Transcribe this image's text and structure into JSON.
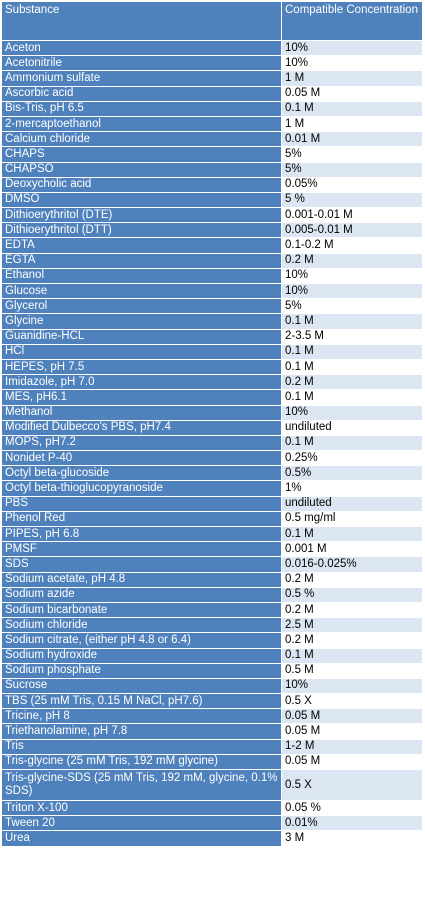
{
  "header": {
    "substance": "Substance",
    "concentration": "Compatible Concentration"
  },
  "rows": [
    {
      "substance": "Aceton",
      "concentration": "10%"
    },
    {
      "substance": "Acetonitrile",
      "concentration": "10%"
    },
    {
      "substance": "Ammonium sulfate",
      "concentration": "1 M"
    },
    {
      "substance": "Ascorbic acid",
      "concentration": "0.05 M"
    },
    {
      "substance": "Bis-Tris, pH 6.5",
      "concentration": "0.1 M"
    },
    {
      "substance": "2-mercaptoethanol",
      "concentration": "1 M"
    },
    {
      "substance": "Calcium chloride",
      "concentration": "0.01 M"
    },
    {
      "substance": "CHAPS",
      "concentration": "5%"
    },
    {
      "substance": "CHAPSO",
      "concentration": "5%"
    },
    {
      "substance": "Deoxycholic acid",
      "concentration": "0.05%"
    },
    {
      "substance": "DMSO",
      "concentration": "5 %"
    },
    {
      "substance": "Dithioerythritol (DTE)",
      "concentration": "0.001-0.01 M"
    },
    {
      "substance": "Dithioerythritol (DTT)",
      "concentration": "0.005-0.01 M"
    },
    {
      "substance": "EDTA",
      "concentration": "0.1-0.2 M"
    },
    {
      "substance": "EGTA",
      "concentration": "0.2 M"
    },
    {
      "substance": "Ethanol",
      "concentration": "10%"
    },
    {
      "substance": "Glucose",
      "concentration": "10%"
    },
    {
      "substance": "Glycerol",
      "concentration": "5%"
    },
    {
      "substance": "Glycine",
      "concentration": "0.1 M"
    },
    {
      "substance": "Guanidine-HCL",
      "concentration": "2-3.5 M"
    },
    {
      "substance": "HCl",
      "concentration": "0.1 M"
    },
    {
      "substance": "HEPES, pH 7.5",
      "concentration": "0.1 M"
    },
    {
      "substance": "Imidazole, pH 7.0",
      "concentration": "0.2 M"
    },
    {
      "substance": "MES, pH6.1",
      "concentration": "0.1 M"
    },
    {
      "substance": "Methanol",
      "concentration": "10%"
    },
    {
      "substance": "Modified Dulbecco's PBS, pH7.4",
      "concentration": "undiluted"
    },
    {
      "substance": "MOPS, pH7.2",
      "concentration": "0.1 M"
    },
    {
      "substance": "Nonidet P-40",
      "concentration": "0.25%"
    },
    {
      "substance": "Octyl beta-glucoside",
      "concentration": "0.5%"
    },
    {
      "substance": "Octyl beta-thioglucopyranoside",
      "concentration": "1%"
    },
    {
      "substance": "PBS",
      "concentration": "undiluted"
    },
    {
      "substance": "Phenol Red",
      "concentration": "0.5 mg/ml"
    },
    {
      "substance": "PIPES, pH 6.8",
      "concentration": "0.1 M"
    },
    {
      "substance": "PMSF",
      "concentration": "0.001 M"
    },
    {
      "substance": "SDS",
      "concentration": "0.016-0.025%"
    },
    {
      "substance": "Sodium acetate, pH 4.8",
      "concentration": "0.2 M"
    },
    {
      "substance": "Sodium azide",
      "concentration": "0.5 %"
    },
    {
      "substance": "Sodium bicarbonate",
      "concentration": "0.2 M"
    },
    {
      "substance": "Sodium chloride",
      "concentration": "2.5 M"
    },
    {
      "substance": "Sodium citrate, (either pH 4.8 or 6.4)",
      "concentration": "0.2 M"
    },
    {
      "substance": "Sodium hydroxide",
      "concentration": "0.1 M"
    },
    {
      "substance": "Sodium phosphate",
      "concentration": "0.5 M"
    },
    {
      "substance": "Sucrose",
      "concentration": "10%"
    },
    {
      "substance": "TBS (25 mM Tris, 0.15 M NaCl, pH7.6)",
      "concentration": "0.5 X"
    },
    {
      "substance": "Tricine, pH 8",
      "concentration": "0.05 M"
    },
    {
      "substance": "Triethanolamine, pH 7.8",
      "concentration": "0.05 M"
    },
    {
      "substance": "Tris",
      "concentration": "1-2 M"
    },
    {
      "substance": "Tris-glycine (25 mM Tris, 192 mM glycine)",
      "concentration": "0.05 M"
    },
    {
      "substance": "Tris-glycine-SDS (25 mM Tris, 192 mM, glycine, 0.1% SDS)",
      "concentration": "0.5 X"
    },
    {
      "substance": "Triton X-100",
      "concentration": "0.05 %"
    },
    {
      "substance": "Tween 20",
      "concentration": "0.01%"
    },
    {
      "substance": "Urea",
      "concentration": "3 M"
    }
  ]
}
